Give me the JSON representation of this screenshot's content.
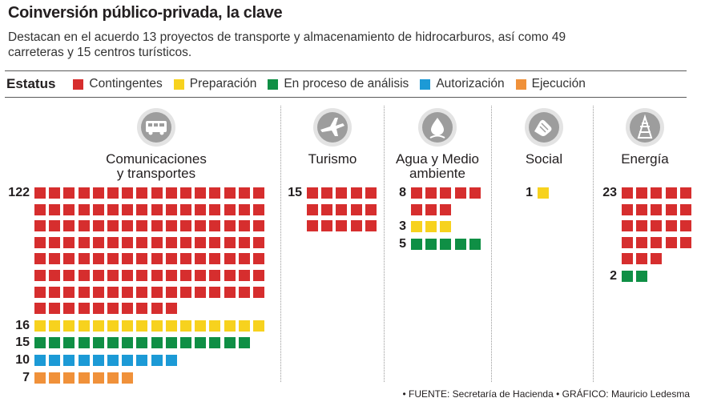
{
  "header": {
    "title": "Coinversión público-privada, la clave",
    "subtitle": "Destacan en el acuerdo 13 proyectos de transporte y almacenamiento de hidrocarburos, así como 49 carreteras y 15 centros turísticos."
  },
  "legend": {
    "title": "Estatus",
    "items": [
      {
        "key": "contingentes",
        "label": "Contingentes",
        "color": "#d62e2e"
      },
      {
        "key": "preparacion",
        "label": "Preparación",
        "color": "#f7d21e"
      },
      {
        "key": "analisis",
        "label": "En proceso de análisis",
        "color": "#0f8f45"
      },
      {
        "key": "autorizacion",
        "label": "Autorización",
        "color": "#1c9ad6"
      },
      {
        "key": "ejecucion",
        "label": "Ejecución",
        "color": "#f0913a"
      }
    ]
  },
  "footer": "• FUENTE: Secretaría de Hacienda • GRÁFICO: Mauricio Ledesma",
  "chart_data": {
    "type": "waffle",
    "status_categories": [
      "Contingentes",
      "Preparación",
      "En proceso de análisis",
      "Autorización",
      "Ejecución"
    ],
    "sectors": [
      {
        "name_lines": [
          "Comunicaciones",
          "y transportes"
        ],
        "icon": "bus-icon",
        "groups": [
          {
            "status": "contingentes",
            "value": 122,
            "per_row": 16
          },
          {
            "status": "preparacion",
            "value": 16,
            "per_row": 16
          },
          {
            "status": "analisis",
            "value": 15,
            "per_row": 15
          },
          {
            "status": "autorizacion",
            "value": 10,
            "per_row": 10
          },
          {
            "status": "ejecucion",
            "value": 7,
            "per_row": 7
          }
        ]
      },
      {
        "name_lines": [
          "Turismo"
        ],
        "icon": "airplane-icon",
        "groups": [
          {
            "status": "contingentes",
            "value": 15,
            "per_row": 5
          }
        ]
      },
      {
        "name_lines": [
          "Agua y Medio",
          "ambiente"
        ],
        "icon": "water-plant-icon",
        "groups": [
          {
            "status": "contingentes",
            "value": 8,
            "per_row": 5
          },
          {
            "status": "preparacion",
            "value": 3,
            "per_row": 3
          },
          {
            "status": "analisis",
            "value": 5,
            "per_row": 5
          }
        ]
      },
      {
        "name_lines": [
          "Social"
        ],
        "icon": "hands-icon",
        "groups": [
          {
            "status": "preparacion",
            "value": 1,
            "per_row": 1
          }
        ]
      },
      {
        "name_lines": [
          "Energía"
        ],
        "icon": "energy-tower-icon",
        "groups": [
          {
            "status": "contingentes",
            "value": 23,
            "per_row": 5
          },
          {
            "status": "analisis",
            "value": 2,
            "per_row": 2
          }
        ]
      }
    ]
  }
}
